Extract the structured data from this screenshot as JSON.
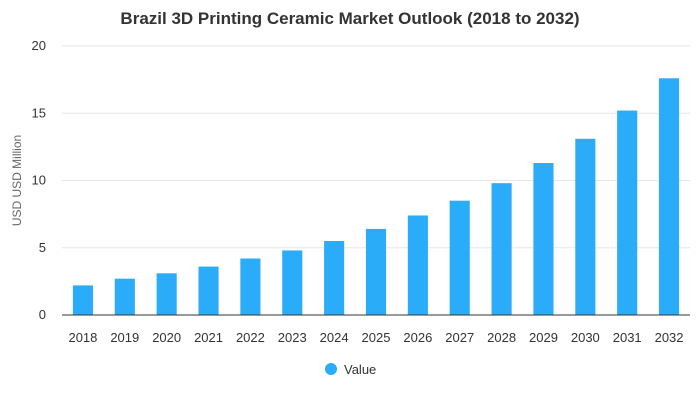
{
  "chart_data": {
    "type": "bar",
    "title": "Brazil 3D Printing Ceramic Market Outlook (2018 to 2032)",
    "xlabel": "",
    "ylabel": "USD USD Million",
    "categories": [
      "2018",
      "2019",
      "2020",
      "2021",
      "2022",
      "2023",
      "2024",
      "2025",
      "2026",
      "2027",
      "2028",
      "2029",
      "2030",
      "2031",
      "2032"
    ],
    "series": [
      {
        "name": "Value",
        "color": "#2aacf8",
        "values": [
          2.2,
          2.7,
          3.1,
          3.6,
          4.2,
          4.8,
          5.5,
          6.4,
          7.4,
          8.5,
          9.8,
          11.3,
          13.1,
          15.2,
          17.6
        ]
      }
    ],
    "ylim": [
      0,
      20
    ],
    "yticks": [
      "0",
      "5",
      "10",
      "15",
      "20"
    ],
    "grid": true,
    "legend": "bottom"
  }
}
